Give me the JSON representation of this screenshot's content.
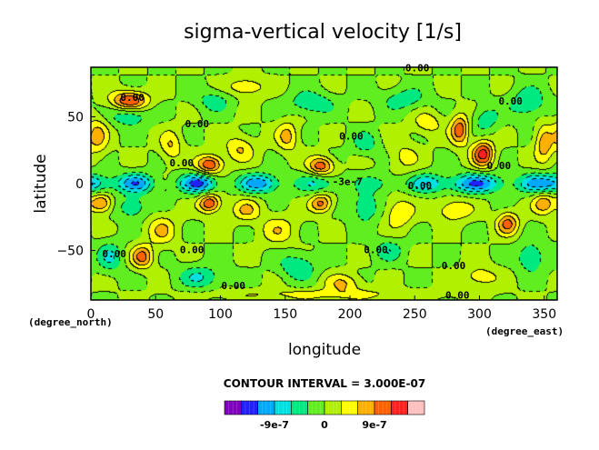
{
  "chart_data": {
    "type": "heatmap",
    "title": "sigma-vertical velocity [1/s]",
    "xlabel": "longitude",
    "ylabel": "latitude",
    "x_units": "(degree_east)",
    "y_units": "(degree_north)",
    "xlim": [
      0,
      360
    ],
    "ylim": [
      -87,
      87
    ],
    "x_ticks": [
      0,
      50,
      100,
      150,
      200,
      250,
      300,
      350
    ],
    "y_ticks": [
      50,
      0,
      -50
    ],
    "contour_interval_label": "CONTOUR INTERVAL = 3.000E-07",
    "contour_labels": [
      {
        "text": "0.00",
        "lon": 32,
        "lat": 62
      },
      {
        "text": "0.00",
        "lon": 82,
        "lat": 42
      },
      {
        "text": "0.00",
        "lon": 70,
        "lat": 13
      },
      {
        "text": "0.00",
        "lon": 252,
        "lat": 84
      },
      {
        "text": "0.00",
        "lon": 324,
        "lat": 59
      },
      {
        "text": "0.00",
        "lon": 201,
        "lat": 33
      },
      {
        "text": "0.00",
        "lon": 315,
        "lat": 11
      },
      {
        "text": "0.00",
        "lon": 18,
        "lat": -55
      },
      {
        "text": "0.00",
        "lon": 78,
        "lat": -52
      },
      {
        "text": "0.00",
        "lon": 220,
        "lat": -52
      },
      {
        "text": "0.00",
        "lon": 280,
        "lat": -64
      },
      {
        "text": "0.00",
        "lon": 110,
        "lat": -79
      },
      {
        "text": "0.00",
        "lon": 283,
        "lat": -86
      },
      {
        "text": "0.00",
        "lon": 254,
        "lat": -4
      },
      {
        "text": "-3e-7",
        "lon": 198,
        "lat": -1
      }
    ],
    "features": [
      {
        "lon": 0,
        "lat": 0,
        "amp": -8.5e-07,
        "sx": 12,
        "sy": 5
      },
      {
        "lon": 35,
        "lat": 0,
        "amp": -1.1e-06,
        "sx": 10,
        "sy": 5
      },
      {
        "lon": 83,
        "lat": 0,
        "amp": -1.3e-06,
        "sx": 10,
        "sy": 5
      },
      {
        "lon": 130,
        "lat": 0,
        "amp": -1.1e-06,
        "sx": 11,
        "sy": 5
      },
      {
        "lon": 175,
        "lat": 0,
        "amp": -6e-07,
        "sx": 12,
        "sy": 5
      },
      {
        "lon": 222,
        "lat": 0,
        "amp": -4e-07,
        "sx": 12,
        "sy": 5
      },
      {
        "lon": 260,
        "lat": 0,
        "amp": -8e-07,
        "sx": 10,
        "sy": 5
      },
      {
        "lon": 298,
        "lat": 0,
        "amp": -1.2e-06,
        "sx": 14,
        "sy": 5
      },
      {
        "lon": 342,
        "lat": 0,
        "amp": -7e-07,
        "sx": 10,
        "sy": 5
      },
      {
        "lon": 30,
        "lat": 62,
        "amp": 1.2e-06,
        "sx": 10,
        "sy": 5
      },
      {
        "lon": 30,
        "lat": 50,
        "amp": -6e-07,
        "sx": 10,
        "sy": 5
      },
      {
        "lon": 5,
        "lat": 35,
        "amp": 7e-07,
        "sx": 6,
        "sy": 10
      },
      {
        "lon": 62,
        "lat": 28,
        "amp": 6e-07,
        "sx": 6,
        "sy": 8
      },
      {
        "lon": 92,
        "lat": 14,
        "amp": 1.2e-06,
        "sx": 7,
        "sy": 5
      },
      {
        "lon": 178,
        "lat": 13,
        "amp": 1.1e-06,
        "sx": 7,
        "sy": 5
      },
      {
        "lon": 115,
        "lat": 26,
        "amp": 6e-07,
        "sx": 8,
        "sy": 7
      },
      {
        "lon": 152,
        "lat": 35,
        "amp": 7e-07,
        "sx": 6,
        "sy": 8
      },
      {
        "lon": 170,
        "lat": 60,
        "amp": -6e-07,
        "sx": 12,
        "sy": 6
      },
      {
        "lon": 95,
        "lat": 62,
        "amp": -4.5e-07,
        "sx": 10,
        "sy": 6
      },
      {
        "lon": 120,
        "lat": 72,
        "amp": 6e-07,
        "sx": 10,
        "sy": 5
      },
      {
        "lon": 242,
        "lat": 63,
        "amp": -5e-07,
        "sx": 12,
        "sy": 6
      },
      {
        "lon": 212,
        "lat": 30,
        "amp": -5e-07,
        "sx": 7,
        "sy": 6
      },
      {
        "lon": 242,
        "lat": 20,
        "amp": 4e-07,
        "sx": 8,
        "sy": 8
      },
      {
        "lon": 260,
        "lat": 45,
        "amp": 5e-07,
        "sx": 8,
        "sy": 6
      },
      {
        "lon": 285,
        "lat": 40,
        "amp": 1.1e-06,
        "sx": 5,
        "sy": 8
      },
      {
        "lon": 303,
        "lat": 22,
        "amp": 1.3e-06,
        "sx": 6,
        "sy": 7
      },
      {
        "lon": 305,
        "lat": 48,
        "amp": -5e-07,
        "sx": 7,
        "sy": 7
      },
      {
        "lon": 338,
        "lat": 60,
        "amp": -6e-07,
        "sx": 10,
        "sy": 8
      },
      {
        "lon": 350,
        "lat": 30,
        "amp": 8e-07,
        "sx": 5,
        "sy": 10
      },
      {
        "lon": 8,
        "lat": -15,
        "amp": 1e-06,
        "sx": 6,
        "sy": 5
      },
      {
        "lon": 32,
        "lat": -18,
        "amp": -6e-07,
        "sx": 8,
        "sy": 6
      },
      {
        "lon": 55,
        "lat": -35,
        "amp": 6e-07,
        "sx": 8,
        "sy": 8
      },
      {
        "lon": 92,
        "lat": -15,
        "amp": 1.2e-06,
        "sx": 6,
        "sy": 5
      },
      {
        "lon": 120,
        "lat": -20,
        "amp": 6e-07,
        "sx": 8,
        "sy": 6
      },
      {
        "lon": 145,
        "lat": -35,
        "amp": 5e-07,
        "sx": 10,
        "sy": 8
      },
      {
        "lon": 178,
        "lat": -15,
        "amp": 1e-06,
        "sx": 6,
        "sy": 5
      },
      {
        "lon": 212,
        "lat": -18,
        "amp": -6e-07,
        "sx": 8,
        "sy": 8
      },
      {
        "lon": 238,
        "lat": -22,
        "amp": 6e-07,
        "sx": 8,
        "sy": 8
      },
      {
        "lon": 280,
        "lat": -20,
        "amp": 6e-07,
        "sx": 10,
        "sy": 6
      },
      {
        "lon": 322,
        "lat": -30,
        "amp": 1e-06,
        "sx": 6,
        "sy": 6
      },
      {
        "lon": 350,
        "lat": -15,
        "amp": 8e-07,
        "sx": 6,
        "sy": 6
      },
      {
        "lon": 40,
        "lat": -55,
        "amp": 1e-06,
        "sx": 6,
        "sy": 6
      },
      {
        "lon": 15,
        "lat": -55,
        "amp": -6e-07,
        "sx": 7,
        "sy": 8
      },
      {
        "lon": 85,
        "lat": -70,
        "amp": -6e-07,
        "sx": 12,
        "sy": 6
      },
      {
        "lon": 160,
        "lat": -62,
        "amp": -6e-07,
        "sx": 10,
        "sy": 7
      },
      {
        "lon": 195,
        "lat": -75,
        "amp": 6e-07,
        "sx": 10,
        "sy": 5
      },
      {
        "lon": 230,
        "lat": -50,
        "amp": -5e-07,
        "sx": 8,
        "sy": 6
      },
      {
        "lon": 340,
        "lat": -55,
        "amp": -6e-07,
        "sx": 8,
        "sy": 8
      },
      {
        "lon": 300,
        "lat": -70,
        "amp": 5e-07,
        "sx": 10,
        "sy": 6
      },
      {
        "lon": 180,
        "lat": -83,
        "amp": 4e-07,
        "sx": 60,
        "sy": 3
      }
    ],
    "colorbar": {
      "levels": [
        -1.5e-06,
        -1.2e-06,
        -9e-07,
        -6e-07,
        -3e-07,
        0,
        3e-07,
        6e-07,
        9e-07,
        1.2e-06,
        1.5e-06
      ],
      "colors": [
        "#8000c0",
        "#2020ff",
        "#00a8ff",
        "#00e0e0",
        "#00e880",
        "#60ee20",
        "#b0f000",
        "#ffff00",
        "#ffb000",
        "#ff6000",
        "#ff2020",
        "#ffc0c0"
      ],
      "tick_labels": [
        {
          "value": -9e-07,
          "text": "-9e-7"
        },
        {
          "value": 0,
          "text": "0"
        },
        {
          "value": 9e-07,
          "text": "9e-7"
        }
      ]
    }
  }
}
